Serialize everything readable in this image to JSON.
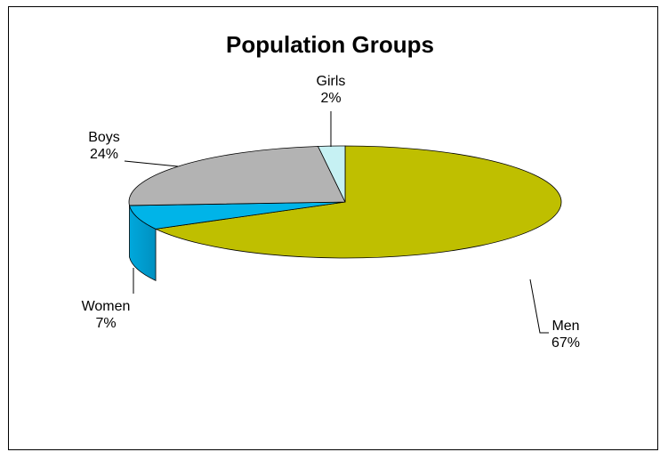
{
  "chart_data": {
    "type": "pie",
    "title": "Population Groups",
    "slices": [
      {
        "label": "Men",
        "value": 67,
        "pct_label": "67%",
        "color": "#bfbf00"
      },
      {
        "label": "Women",
        "value": 7,
        "pct_label": "7%",
        "color": "#00b4e8"
      },
      {
        "label": "Boys",
        "value": 24,
        "pct_label": "24%",
        "color": "#b3b3b3"
      },
      {
        "label": "Girls",
        "value": 2,
        "pct_label": "2%",
        "color": "#c6f1f3"
      }
    ],
    "style": "3d-pie"
  }
}
